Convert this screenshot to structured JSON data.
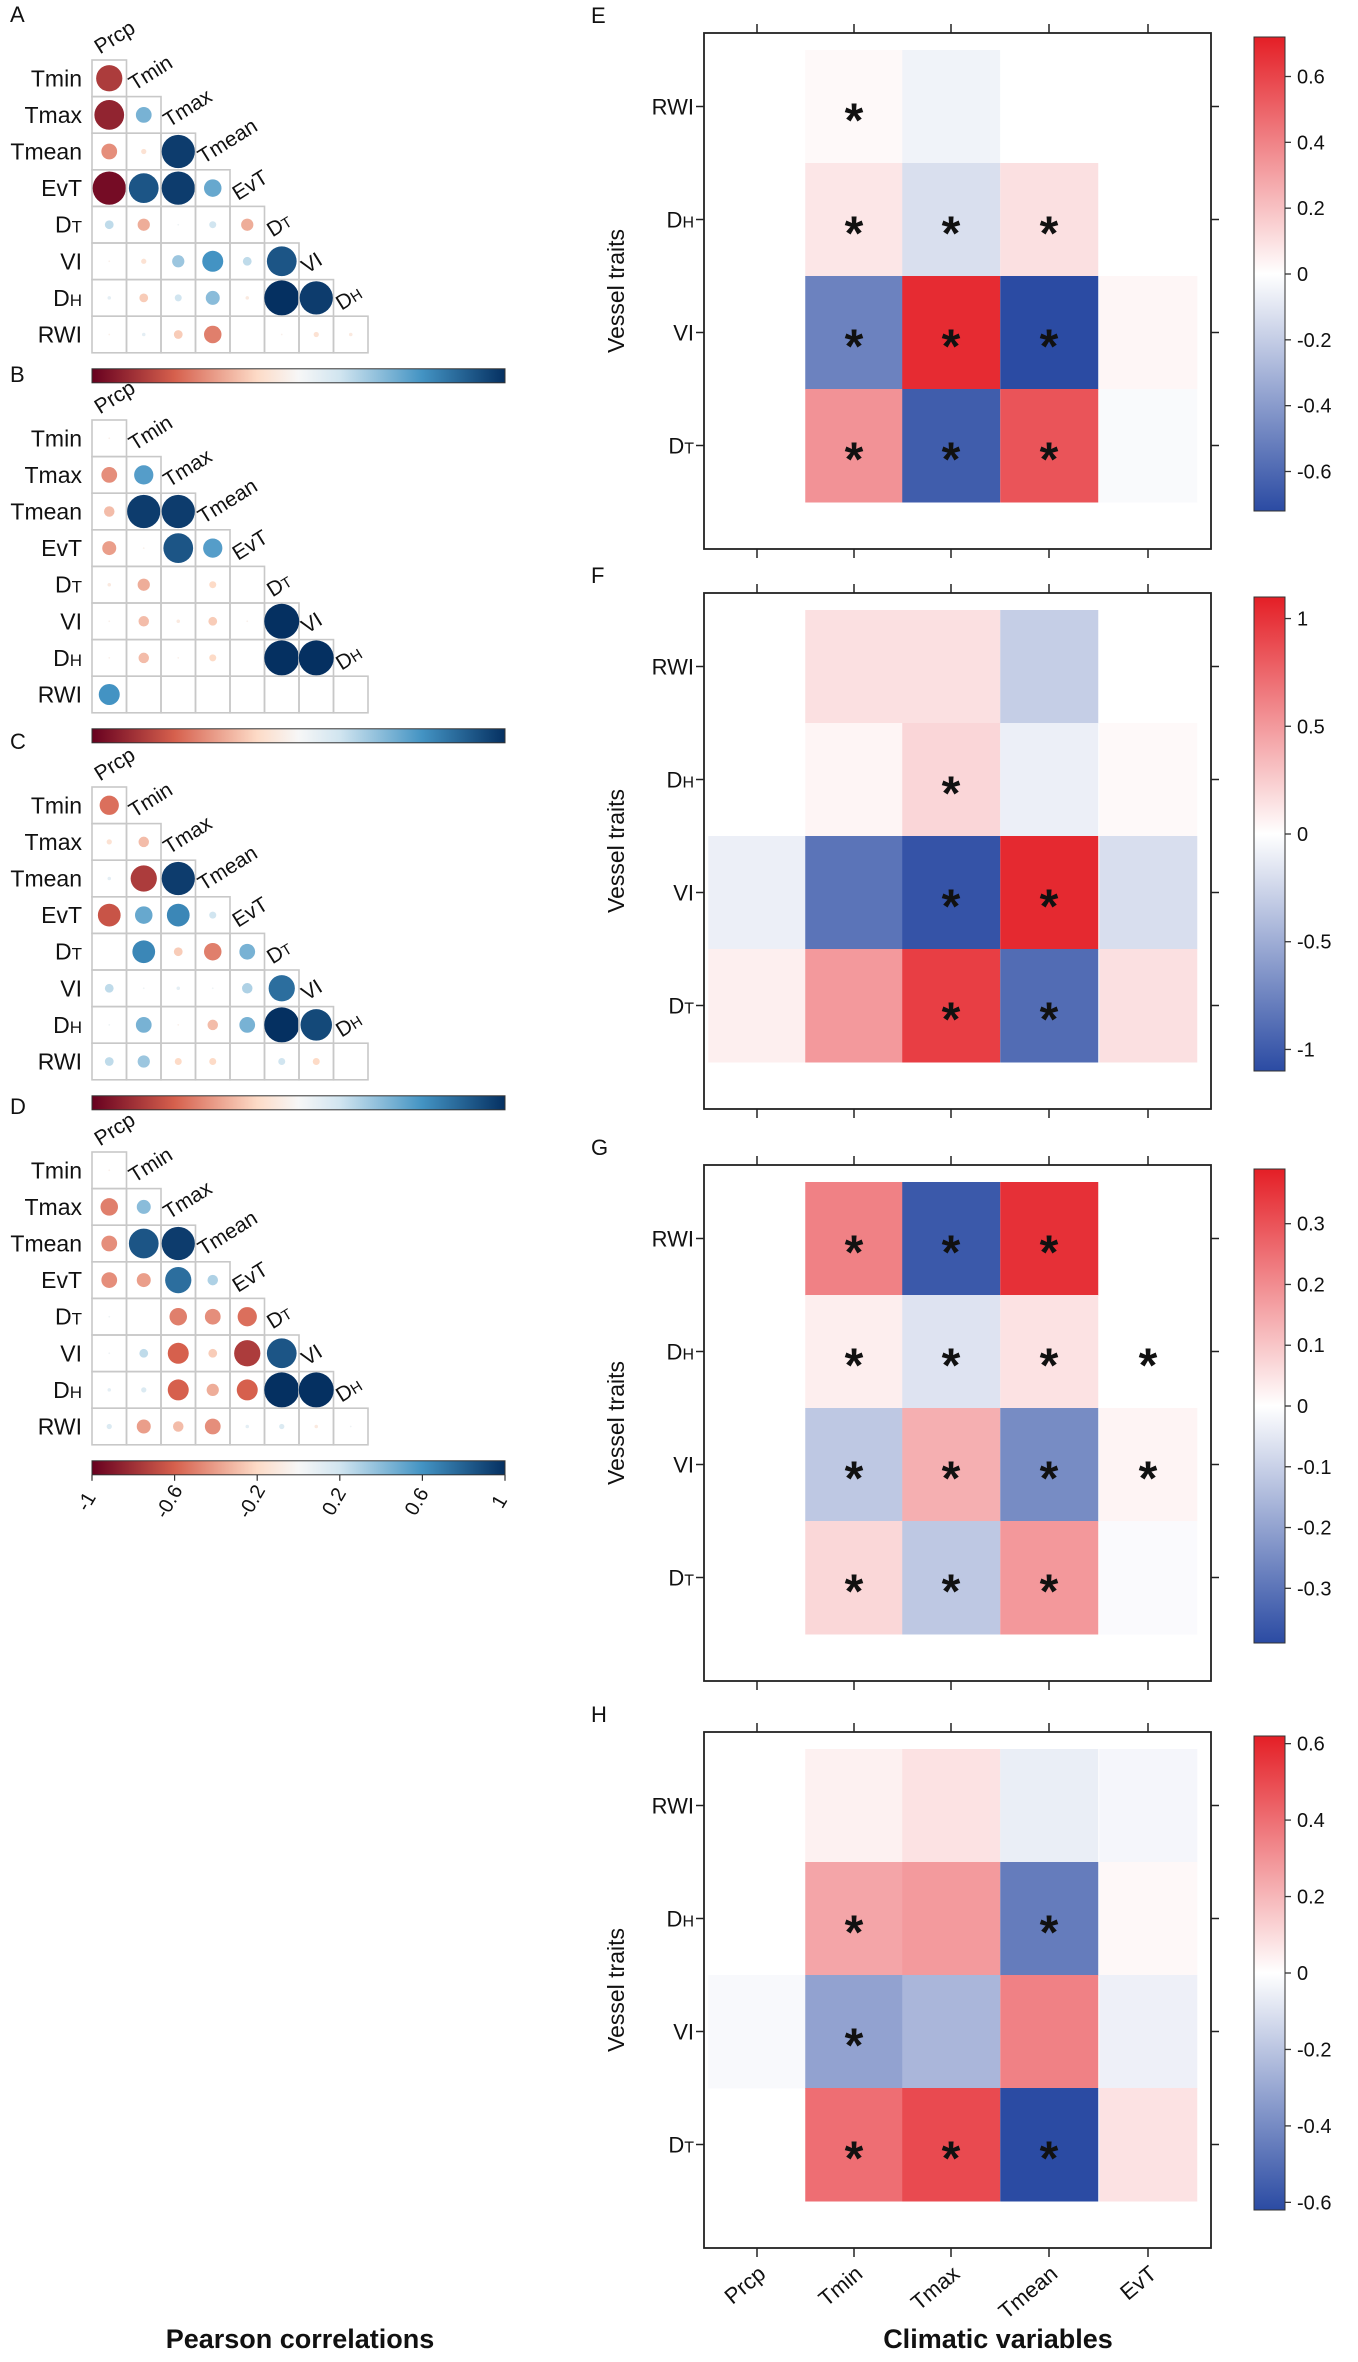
{
  "figure": {
    "left_axis_title": "Pearson correlations",
    "right_axis_title": "Climatic variables",
    "corr_scale_ticks": [
      "-1",
      "-0.6",
      "-0.2",
      "0.2",
      "0.6",
      "1"
    ],
    "colors": {
      "neg_strong": "#67001f",
      "neg_mid": "#d6604d",
      "neg_light": "#fddbc7",
      "neutral": "#f7f7f7",
      "pos_light": "#d1e5f0",
      "pos_mid": "#4393c3",
      "pos_strong": "#053061",
      "heat_neg": "#2b4ba3",
      "heat_mid": "#ffffff",
      "heat_pos": "#e41f26"
    }
  },
  "chart_data": [
    {
      "type": "correlation-matrix",
      "panel": "A",
      "variables": [
        "Prcp",
        "Tmin",
        "Tmax",
        "Tmean",
        "EvT",
        "DT",
        "VI",
        "DH",
        "RWI"
      ],
      "row_labels": [
        "Tmin",
        "Tmax",
        "Tmean",
        "EvT",
        "DT",
        "VI",
        "DH",
        "RWI"
      ],
      "diagonal_labels": [
        "Prcp",
        "Tmin",
        "Tmax",
        "Tmean",
        "EvT",
        "DT",
        "VI",
        "DH"
      ],
      "values": [
        [
          -0.75
        ],
        [
          -0.85,
          0.45
        ],
        [
          -0.45,
          -0.15,
          0.95
        ],
        [
          -0.95,
          0.85,
          0.95,
          0.5
        ],
        [
          0.25,
          -0.35,
          0.05,
          0.2,
          -0.35
        ],
        [
          -0.05,
          -0.15,
          0.35,
          0.6,
          0.25,
          0.85
        ],
        [
          0.1,
          -0.25,
          0.2,
          0.4,
          -0.1,
          1.0,
          0.95
        ],
        [
          -0.05,
          0.1,
          -0.25,
          -0.5,
          0.0,
          -0.05,
          -0.15,
          -0.1
        ]
      ],
      "range": [
        -1,
        1
      ]
    },
    {
      "type": "correlation-matrix",
      "panel": "B",
      "variables": [
        "Prcp",
        "Tmin",
        "Tmax",
        "Tmean",
        "EvT",
        "DT",
        "VI",
        "DH",
        "RWI"
      ],
      "row_labels": [
        "Tmin",
        "Tmax",
        "Tmean",
        "EvT",
        "DT",
        "VI",
        "DH",
        "RWI"
      ],
      "diagonal_labels": [
        "Prcp",
        "Tmin",
        "Tmax",
        "Tmean",
        "EvT",
        "DT",
        "VI",
        "DH"
      ],
      "values": [
        [
          -0.05
        ],
        [
          -0.45,
          0.55
        ],
        [
          -0.3,
          0.95,
          0.95
        ],
        [
          -0.4,
          -0.05,
          0.85,
          0.55
        ],
        [
          -0.1,
          -0.35,
          0.0,
          -0.2,
          0.0
        ],
        [
          -0.05,
          -0.3,
          -0.1,
          -0.25,
          -0.05,
          1.0
        ],
        [
          -0.05,
          -0.3,
          -0.05,
          -0.2,
          0.0,
          1.0,
          1.0
        ],
        [
          0.6,
          0.0,
          0.0,
          0.0,
          0.0,
          0.0,
          0.0,
          0.0
        ]
      ],
      "range": [
        -1,
        1
      ]
    },
    {
      "type": "correlation-matrix",
      "panel": "C",
      "variables": [
        "Prcp",
        "Tmin",
        "Tmax",
        "Tmean",
        "EvT",
        "DT",
        "VI",
        "DH",
        "RWI"
      ],
      "row_labels": [
        "Tmin",
        "Tmax",
        "Tmean",
        "EvT",
        "DT",
        "VI",
        "DH",
        "RWI"
      ],
      "diagonal_labels": [
        "Prcp",
        "Tmin",
        "Tmax",
        "Tmean",
        "EvT",
        "DT",
        "VI",
        "DH"
      ],
      "values": [
        [
          -0.55
        ],
        [
          -0.15,
          -0.3
        ],
        [
          0.1,
          -0.75,
          0.95
        ],
        [
          -0.65,
          0.5,
          0.65,
          0.2
        ],
        [
          0.0,
          0.65,
          -0.25,
          -0.5,
          0.45
        ],
        [
          0.25,
          0.05,
          0.1,
          0.05,
          0.3,
          0.75
        ],
        [
          0.05,
          0.45,
          -0.05,
          -0.3,
          0.45,
          1.0,
          0.9
        ],
        [
          0.25,
          0.35,
          -0.2,
          -0.2,
          0.0,
          0.2,
          -0.2,
          0.0
        ]
      ],
      "range": [
        -1,
        1
      ]
    },
    {
      "type": "correlation-matrix",
      "panel": "D",
      "variables": [
        "Prcp",
        "Tmin",
        "Tmax",
        "Tmean",
        "EvT",
        "DT",
        "VI",
        "DH",
        "RWI"
      ],
      "row_labels": [
        "Tmin",
        "Tmax",
        "Tmean",
        "EvT",
        "DT",
        "VI",
        "DH",
        "RWI"
      ],
      "diagonal_labels": [
        "Prcp",
        "Tmin",
        "Tmax",
        "Tmean",
        "EvT",
        "DT",
        "VI",
        "DH"
      ],
      "values": [
        [
          -0.05
        ],
        [
          -0.5,
          0.4
        ],
        [
          -0.45,
          0.85,
          0.95
        ],
        [
          -0.45,
          -0.4,
          0.75,
          0.3
        ],
        [
          0.05,
          0.0,
          -0.5,
          -0.45,
          -0.55
        ],
        [
          0.05,
          0.25,
          -0.6,
          -0.25,
          -0.75,
          0.85
        ],
        [
          0.1,
          0.15,
          -0.6,
          -0.35,
          -0.6,
          1.0,
          1.0
        ],
        [
          0.15,
          -0.4,
          -0.3,
          -0.45,
          0.1,
          0.15,
          -0.1,
          0.05
        ]
      ],
      "range": [
        -1,
        1
      ]
    },
    {
      "type": "heatmap",
      "panel": "E",
      "x_categories": [
        "Prcp",
        "Tmin",
        "Tmax",
        "Tmean",
        "EvT"
      ],
      "y_categories": [
        "RWI",
        "DH",
        "VI",
        "DT"
      ],
      "ylabel": "Vessel traits",
      "xlabel": "Climatic variables",
      "values": [
        [
          null,
          0.02,
          -0.05,
          0.0,
          0.0
        ],
        [
          null,
          0.08,
          -0.13,
          0.1,
          null
        ],
        [
          null,
          -0.5,
          0.68,
          -0.72,
          0.03
        ],
        [
          null,
          0.35,
          -0.65,
          0.55,
          -0.02
        ]
      ],
      "significant": [
        [
          false,
          true,
          false,
          false,
          false
        ],
        [
          false,
          true,
          true,
          true,
          false
        ],
        [
          false,
          true,
          true,
          true,
          false
        ],
        [
          false,
          true,
          true,
          true,
          false
        ]
      ],
      "colorbar_ticks": [
        "0.6",
        "0.4",
        "0.2",
        "0",
        "-0.2",
        "-0.4",
        "-0.6"
      ],
      "colorbar_tick_values": [
        0.6,
        0.4,
        0.2,
        0,
        -0.2,
        -0.4,
        -0.6
      ],
      "range": [
        -0.72,
        0.72
      ]
    },
    {
      "type": "heatmap",
      "panel": "F",
      "x_categories": [
        "Prcp",
        "Tmin",
        "Tmax",
        "Tmean",
        "EvT"
      ],
      "y_categories": [
        "RWI",
        "DH",
        "VI",
        "DT"
      ],
      "ylabel": "Vessel traits",
      "xlabel": "Climatic variables",
      "values": [
        [
          null,
          0.15,
          0.15,
          -0.3,
          null
        ],
        [
          null,
          0.05,
          0.2,
          -0.1,
          0.03
        ],
        [
          -0.1,
          -0.85,
          -1.05,
          1.05,
          -0.2
        ],
        [
          0.08,
          0.5,
          0.95,
          -0.9,
          0.15
        ]
      ],
      "significant": [
        [
          false,
          false,
          false,
          false,
          false
        ],
        [
          false,
          false,
          true,
          false,
          false
        ],
        [
          false,
          false,
          true,
          true,
          false
        ],
        [
          false,
          false,
          true,
          true,
          false
        ]
      ],
      "colorbar_ticks": [
        "1",
        "0.5",
        "0",
        "-0.5",
        "-1"
      ],
      "colorbar_tick_values": [
        1,
        0.5,
        0,
        -0.5,
        -1
      ],
      "range": [
        -1.1,
        1.1
      ]
    },
    {
      "type": "heatmap",
      "panel": "G",
      "x_categories": [
        "Prcp",
        "Tmin",
        "Tmax",
        "Tmean",
        "EvT"
      ],
      "y_categories": [
        "RWI",
        "DH",
        "VI",
        "DT"
      ],
      "ylabel": "Vessel traits",
      "xlabel": "Climatic variables",
      "values": [
        [
          null,
          0.22,
          -0.36,
          0.36,
          null
        ],
        [
          null,
          0.03,
          -0.06,
          0.05,
          0.0
        ],
        [
          null,
          -0.12,
          0.14,
          -0.25,
          0.02
        ],
        [
          null,
          0.07,
          -0.12,
          0.18,
          -0.01
        ]
      ],
      "significant": [
        [
          false,
          true,
          true,
          true,
          false
        ],
        [
          false,
          true,
          true,
          true,
          true
        ],
        [
          false,
          true,
          true,
          true,
          true
        ],
        [
          false,
          true,
          true,
          true,
          false
        ]
      ],
      "colorbar_ticks": [
        "0.3",
        "0.2",
        "0.1",
        "0",
        "-0.1",
        "-0.2",
        "-0.3"
      ],
      "colorbar_tick_values": [
        0.3,
        0.2,
        0.1,
        0,
        -0.1,
        -0.2,
        -0.3
      ],
      "range": [
        -0.39,
        0.39
      ]
    },
    {
      "type": "heatmap",
      "panel": "H",
      "x_categories": [
        "Prcp",
        "Tmin",
        "Tmax",
        "Tmean",
        "EvT"
      ],
      "y_categories": [
        "RWI",
        "DH",
        "VI",
        "DT"
      ],
      "ylabel": "Vessel traits",
      "xlabel": "Climatic variables",
      "values": [
        [
          null,
          0.04,
          0.08,
          -0.06,
          -0.03
        ],
        [
          null,
          0.25,
          0.28,
          -0.45,
          0.02
        ],
        [
          -0.02,
          -0.32,
          -0.25,
          0.35,
          -0.05
        ],
        [
          null,
          0.4,
          0.5,
          -0.62,
          0.08
        ]
      ],
      "significant": [
        [
          false,
          false,
          false,
          false,
          false
        ],
        [
          false,
          true,
          false,
          true,
          false
        ],
        [
          false,
          true,
          false,
          false,
          false
        ],
        [
          false,
          true,
          true,
          true,
          false
        ]
      ],
      "colorbar_ticks": [
        "0.6",
        "0.4",
        "0.2",
        "0",
        "-0.2",
        "-0.4",
        "-0.6"
      ],
      "colorbar_tick_values": [
        0.6,
        0.4,
        0.2,
        0,
        -0.2,
        -0.4,
        -0.6
      ],
      "range": [
        -0.62,
        0.62
      ]
    }
  ]
}
